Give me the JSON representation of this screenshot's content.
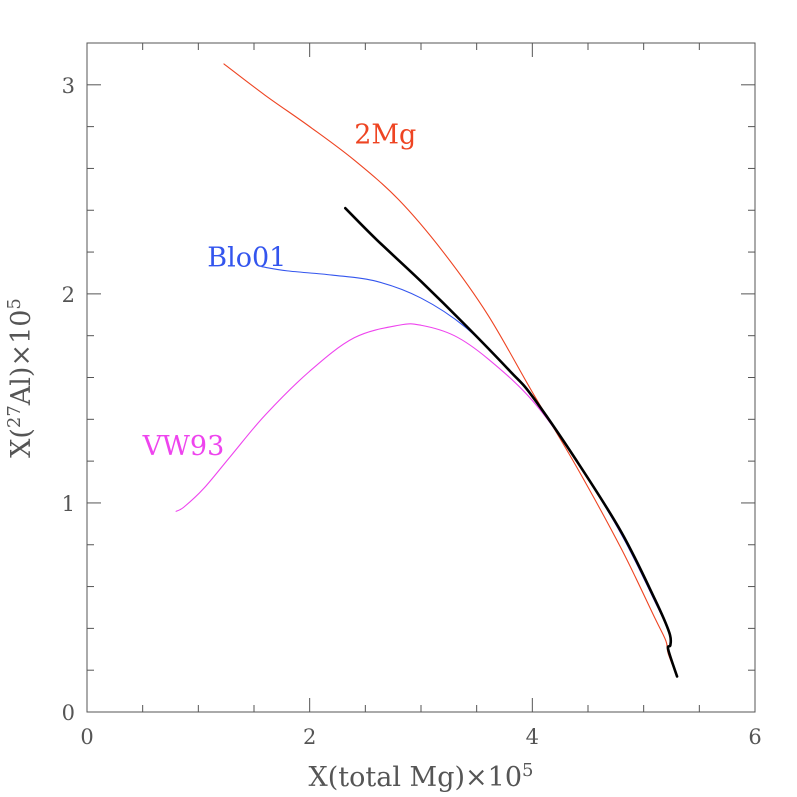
{
  "chart_data": {
    "type": "line",
    "title": "",
    "xlabel": "X(total Mg)×10",
    "xlabel_sup": "5",
    "ylabel_pre": "X(",
    "ylabel_iso": "27",
    "ylabel_post": "Al)×10",
    "ylabel_sup": "5",
    "xlim": [
      0,
      6
    ],
    "ylim": [
      0,
      3.2
    ],
    "xticks": [
      0,
      2,
      4,
      6
    ],
    "xtick_labels": [
      "0",
      "2",
      "4",
      "6"
    ],
    "yticks": [
      0,
      1,
      2,
      3
    ],
    "ytick_labels": [
      "0",
      "1",
      "2",
      "3"
    ],
    "x_minor_step": 0.5,
    "y_minor_step": 0.2,
    "grid": false,
    "series": [
      {
        "name": "2Mg",
        "color": "#ee4422",
        "x": [
          1.23,
          1.6,
          2.0,
          2.4,
          2.8,
          3.2,
          3.6,
          4.0,
          4.4,
          4.8,
          5.1,
          5.2,
          5.22,
          5.3
        ],
        "y": [
          3.1,
          2.95,
          2.8,
          2.64,
          2.45,
          2.2,
          1.9,
          1.53,
          1.17,
          0.78,
          0.45,
          0.34,
          0.28,
          0.17
        ]
      },
      {
        "name": "Blo01",
        "color": "#3355ee",
        "x": [
          1.57,
          1.8,
          2.2,
          2.6,
          3.0,
          3.4,
          3.8,
          4.0,
          4.4,
          4.8,
          5.1,
          5.23,
          5.24,
          5.22,
          5.3
        ],
        "y": [
          2.13,
          2.11,
          2.09,
          2.06,
          1.98,
          1.84,
          1.63,
          1.51,
          1.2,
          0.85,
          0.53,
          0.38,
          0.32,
          0.3,
          0.17
        ]
      },
      {
        "name": "VW93",
        "color": "#ee44ee",
        "x": [
          0.8,
          0.87,
          1.05,
          1.3,
          1.6,
          2.0,
          2.4,
          2.8,
          3.0,
          3.3,
          3.6,
          4.0,
          4.4,
          4.8,
          5.1,
          5.23,
          5.24,
          5.22,
          5.3
        ],
        "y": [
          0.96,
          0.98,
          1.07,
          1.23,
          1.42,
          1.63,
          1.79,
          1.85,
          1.85,
          1.8,
          1.69,
          1.49,
          1.2,
          0.85,
          0.53,
          0.38,
          0.32,
          0.3,
          0.17
        ]
      },
      {
        "name": "",
        "color": "#000000",
        "x": [
          2.32,
          2.6,
          3.0,
          3.4,
          3.8,
          4.0,
          4.4,
          4.8,
          5.1,
          5.23,
          5.24,
          5.22,
          5.3
        ],
        "y": [
          2.41,
          2.26,
          2.06,
          1.85,
          1.63,
          1.51,
          1.2,
          0.86,
          0.54,
          0.38,
          0.32,
          0.3,
          0.17
        ]
      }
    ],
    "annotations": [
      {
        "text": "2Mg",
        "x": 2.4,
        "y": 2.72,
        "color": "#ee4422"
      },
      {
        "text": "Blo01",
        "x": 1.08,
        "y": 2.13,
        "color": "#3355ee"
      },
      {
        "text": "VW93",
        "x": 0.5,
        "y": 1.23,
        "color": "#ee44ee"
      }
    ]
  }
}
